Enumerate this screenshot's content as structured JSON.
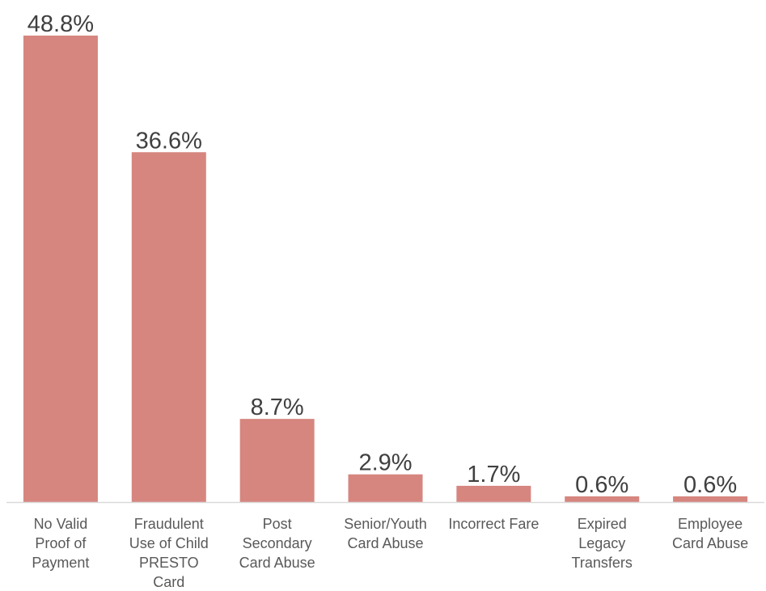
{
  "chart_data": {
    "type": "bar",
    "title": "",
    "xlabel": "",
    "ylabel": "",
    "ylim": [
      0,
      50
    ],
    "grid": false,
    "legend": "none",
    "bar_color": "#d6867f",
    "categories": [
      [
        "No Valid",
        "Proof of",
        "Payment"
      ],
      [
        "Fraudulent",
        "Use of Child",
        "PRESTO",
        "Card"
      ],
      [
        "Post",
        "Secondary",
        "Card Abuse"
      ],
      [
        "Senior/Youth",
        "Card Abuse"
      ],
      [
        "Incorrect Fare"
      ],
      [
        "Expired",
        "Legacy",
        "Transfers"
      ],
      [
        "Employee",
        "Card Abuse"
      ]
    ],
    "values": [
      48.8,
      36.6,
      8.7,
      2.9,
      1.7,
      0.6,
      0.6
    ],
    "value_labels": [
      "48.8%",
      "36.6%",
      "8.7%",
      "2.9%",
      "1.7%",
      "0.6%",
      "0.6%"
    ]
  }
}
